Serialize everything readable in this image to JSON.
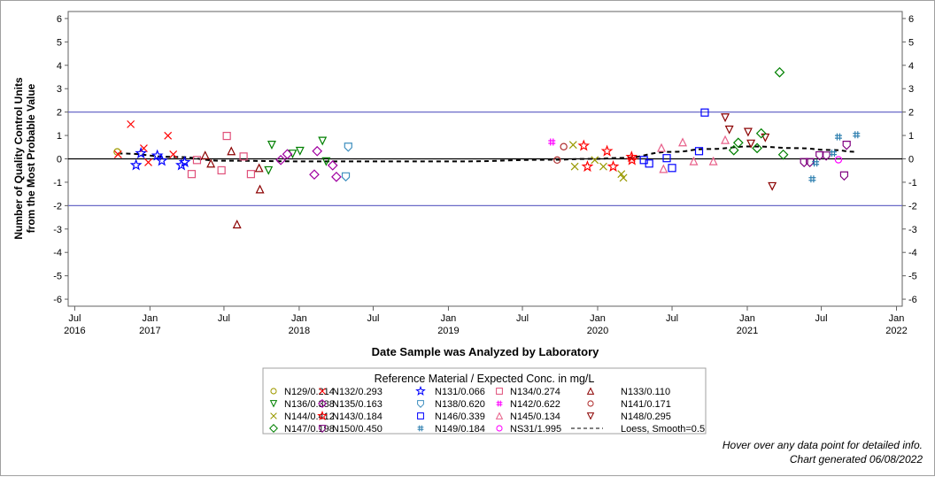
{
  "chart_data": {
    "type": "scatter",
    "xlabel": "Date Sample was Analyzed by Laboratory",
    "ylabel_lines": [
      "Number of Quality Control Units",
      "from the Most Probable Value"
    ],
    "xlim": [
      "2016-06-15",
      "2022-01-15"
    ],
    "ylim": [
      -6.3,
      6.3
    ],
    "x_ticks": [
      {
        "date": "2016-07-01",
        "month": "Jul",
        "year": "2016"
      },
      {
        "date": "2017-01-01",
        "month": "Jan",
        "year": "2017"
      },
      {
        "date": "2017-07-01",
        "month": "Jul",
        "year": ""
      },
      {
        "date": "2018-01-01",
        "month": "Jan",
        "year": "2018"
      },
      {
        "date": "2018-07-01",
        "month": "Jul",
        "year": ""
      },
      {
        "date": "2019-01-01",
        "month": "Jan",
        "year": "2019"
      },
      {
        "date": "2019-07-01",
        "month": "Jul",
        "year": ""
      },
      {
        "date": "2020-01-01",
        "month": "Jan",
        "year": "2020"
      },
      {
        "date": "2020-07-01",
        "month": "Jul",
        "year": ""
      },
      {
        "date": "2021-01-01",
        "month": "Jan",
        "year": "2021"
      },
      {
        "date": "2021-07-01",
        "month": "Jul",
        "year": ""
      },
      {
        "date": "2022-01-01",
        "month": "Jan",
        "year": "2022"
      }
    ],
    "y_ticks": [
      "6",
      "5",
      "4",
      "3",
      "2",
      "1",
      "0",
      "-1",
      "-2",
      "-3",
      "-4",
      "-5",
      "-6"
    ],
    "y_tick_values": [
      6,
      5,
      4,
      3,
      2,
      1,
      0,
      -1,
      -2,
      -3,
      -4,
      -5,
      -6
    ],
    "reference_lines": [
      {
        "y": 2,
        "color": "#6a6ac8"
      },
      {
        "y": -2,
        "color": "#6a6ac8"
      },
      {
        "y": 0,
        "color": "#000000"
      }
    ],
    "grid": false,
    "legend": {
      "title": "Reference Material / Expected Conc. in mg/L",
      "placement": "bottom"
    },
    "series": [
      {
        "name": "N129/0.214",
        "marker": "circle",
        "color": "#a09a00",
        "points": [
          [
            "2016-10-13",
            0.3
          ]
        ]
      },
      {
        "name": "N132/0.293",
        "marker": "x",
        "color": "#ff0000",
        "points": [
          [
            "2016-10-15",
            0.19
          ],
          [
            "2016-11-15",
            1.48
          ],
          [
            "2016-12-17",
            0.45
          ],
          [
            "2016-12-28",
            -0.15
          ],
          [
            "2017-02-14",
            0.99
          ],
          [
            "2017-02-27",
            0.19
          ]
        ]
      },
      {
        "name": "N131/0.066",
        "marker": "star",
        "color": "#0000ff",
        "points": [
          [
            "2016-11-28",
            -0.27
          ],
          [
            "2016-12-10",
            0.24
          ],
          [
            "2017-01-19",
            0.14
          ],
          [
            "2017-01-30",
            -0.08
          ],
          [
            "2017-03-19",
            -0.27
          ],
          [
            "2017-03-27",
            -0.14
          ]
        ]
      },
      {
        "name": "N134/0.274",
        "marker": "square",
        "color": "#e0507a",
        "points": [
          [
            "2017-04-13",
            -0.65
          ],
          [
            "2017-04-26",
            -0.05
          ],
          [
            "2017-06-25",
            -0.49
          ],
          [
            "2017-07-08",
            0.98
          ],
          [
            "2017-08-18",
            0.1
          ],
          [
            "2017-09-05",
            -0.65
          ]
        ]
      },
      {
        "name": "N133/0.110",
        "marker": "triangle",
        "color": "#8b0000",
        "points": [
          [
            "2017-05-16",
            0.15
          ],
          [
            "2017-05-30",
            -0.2
          ],
          [
            "2017-07-19",
            0.33
          ],
          [
            "2017-08-02",
            -2.8
          ],
          [
            "2017-09-25",
            -0.39
          ],
          [
            "2017-09-27",
            -1.3
          ]
        ]
      },
      {
        "name": "N136/0.388",
        "marker": "triangle-down",
        "color": "#008000",
        "points": [
          [
            "2017-10-18",
            -0.49
          ],
          [
            "2017-10-26",
            0.6
          ],
          [
            "2017-12-16",
            0.22
          ],
          [
            "2018-01-03",
            0.34
          ],
          [
            "2018-02-27",
            0.77
          ],
          [
            "2018-03-08",
            -0.11
          ]
        ]
      },
      {
        "name": "N135/0.163",
        "marker": "diamond",
        "color": "#a000a0",
        "points": [
          [
            "2017-11-17",
            -0.05
          ],
          [
            "2017-12-03",
            0.2
          ],
          [
            "2018-02-07",
            -0.67
          ],
          [
            "2018-02-14",
            0.33
          ],
          [
            "2018-03-24",
            -0.28
          ],
          [
            "2018-04-02",
            -0.77
          ]
        ]
      },
      {
        "name": "N138/0.620",
        "marker": "shield",
        "color": "#3f8fbf",
        "points": [
          [
            "2018-04-25",
            -0.75
          ],
          [
            "2018-05-01",
            0.52
          ]
        ]
      },
      {
        "name": "N142/0.622",
        "marker": "hash",
        "color": "#ff00ff",
        "points": [
          [
            "2019-09-11",
            0.72
          ]
        ]
      },
      {
        "name": "N141/0.171",
        "marker": "circle",
        "color": "#b03030",
        "points": [
          [
            "2019-09-24",
            -0.05
          ],
          [
            "2019-10-10",
            0.52
          ]
        ]
      },
      {
        "name": "N144/0.412",
        "marker": "x",
        "color": "#999900",
        "points": [
          [
            "2019-11-02",
            0.6
          ],
          [
            "2019-11-06",
            -0.33
          ],
          [
            "2019-12-25",
            -0.05
          ],
          [
            "2020-01-15",
            -0.33
          ],
          [
            "2020-02-28",
            -0.65
          ],
          [
            "2020-03-04",
            -0.81
          ]
        ]
      },
      {
        "name": "N143/0.184",
        "marker": "star",
        "color": "#ff0000",
        "points": [
          [
            "2019-11-28",
            0.56
          ],
          [
            "2019-12-07",
            -0.33
          ],
          [
            "2020-01-24",
            0.33
          ],
          [
            "2020-02-08",
            -0.33
          ],
          [
            "2020-03-24",
            0.08
          ],
          [
            "2020-03-25",
            -0.05
          ]
        ]
      },
      {
        "name": "N146/0.339",
        "marker": "square",
        "color": "#0000ff",
        "points": [
          [
            "2020-04-23",
            -0.05
          ],
          [
            "2020-05-06",
            -0.2
          ],
          [
            "2020-06-18",
            0.03
          ],
          [
            "2020-07-01",
            -0.39
          ],
          [
            "2020-09-05",
            0.33
          ],
          [
            "2020-09-19",
            1.98
          ]
        ]
      },
      {
        "name": "N145/0.134",
        "marker": "triangle",
        "color": "#e8608a",
        "points": [
          [
            "2020-06-05",
            0.47
          ],
          [
            "2020-06-10",
            -0.43
          ],
          [
            "2020-07-27",
            0.71
          ],
          [
            "2020-08-23",
            -0.1
          ],
          [
            "2020-10-10",
            -0.1
          ],
          [
            "2020-11-08",
            0.81
          ]
        ]
      },
      {
        "name": "N148/0.295",
        "marker": "triangle-down",
        "color": "#8b0000",
        "points": [
          [
            "2020-11-08",
            1.77
          ],
          [
            "2020-11-18",
            1.25
          ],
          [
            "2021-01-03",
            1.15
          ],
          [
            "2021-01-10",
            0.65
          ],
          [
            "2021-02-14",
            0.91
          ],
          [
            "2021-03-03",
            -1.17
          ]
        ]
      },
      {
        "name": "N147/0.198",
        "marker": "diamond",
        "color": "#008000",
        "points": [
          [
            "2020-11-29",
            0.37
          ],
          [
            "2020-12-10",
            0.69
          ],
          [
            "2021-01-25",
            0.46
          ],
          [
            "2021-02-04",
            1.09
          ],
          [
            "2021-03-21",
            3.7
          ],
          [
            "2021-03-30",
            0.18
          ]
        ]
      },
      {
        "name": "N150/0.450",
        "marker": "shield",
        "color": "#800080",
        "points": [
          [
            "2021-05-20",
            -0.14
          ],
          [
            "2021-06-03",
            -0.14
          ],
          [
            "2021-06-27",
            0.15
          ],
          [
            "2021-07-13",
            0.14
          ],
          [
            "2021-08-26",
            -0.71
          ],
          [
            "2021-09-01",
            0.6
          ]
        ]
      },
      {
        "name": "N149/0.184",
        "marker": "hash",
        "color": "#3080b0",
        "points": [
          [
            "2021-06-09",
            -0.86
          ],
          [
            "2021-06-17",
            -0.18
          ],
          [
            "2021-07-30",
            0.24
          ],
          [
            "2021-08-12",
            0.94
          ],
          [
            "2021-09-25",
            1.03
          ]
        ]
      },
      {
        "name": "NS31/1.995",
        "marker": "circle",
        "color": "#ff00ff",
        "points": [
          [
            "2021-08-12",
            -0.04
          ]
        ]
      }
    ],
    "loess": {
      "name": "Loess, Smooth=0.5",
      "color": "#000000",
      "points": [
        [
          "2016-10-15",
          0.23
        ],
        [
          "2017-03-08",
          0.08
        ],
        [
          "2017-06-25",
          -0.08
        ],
        [
          "2018-02-06",
          -0.11
        ],
        [
          "2019-01-18",
          -0.11
        ],
        [
          "2019-09-04",
          -0.04
        ],
        [
          "2019-12-22",
          0.0
        ],
        [
          "2020-02-25",
          0.04
        ],
        [
          "2020-07-02",
          0.3
        ],
        [
          "2020-09-26",
          0.42
        ],
        [
          "2021-01-12",
          0.53
        ],
        [
          "2021-04-30",
          0.46
        ],
        [
          "2021-07-26",
          0.38
        ],
        [
          "2021-09-25",
          0.3
        ]
      ]
    }
  },
  "footer": {
    "hover_note": "Hover over any data point for detailed info.",
    "generated": "Chart generated 06/08/2022"
  }
}
